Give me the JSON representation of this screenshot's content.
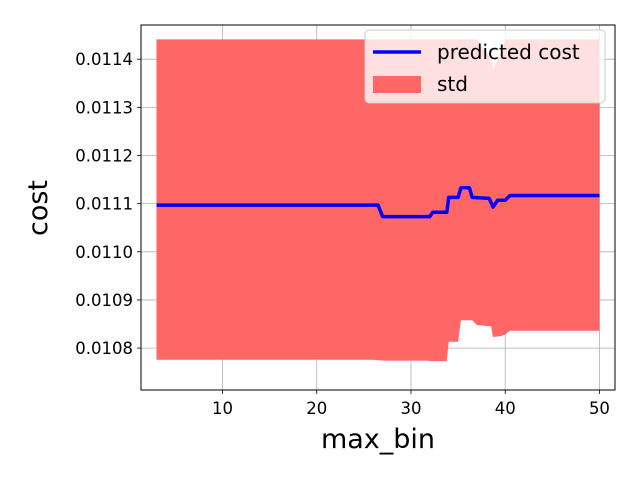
{
  "chart_data": {
    "type": "line",
    "xlabel": "max_bin",
    "ylabel": "cost",
    "xlim": [
      1.35,
      51.65
    ],
    "ylim": [
      0.010713,
      0.011471
    ],
    "grid": true,
    "legend_position": "upper-right",
    "xticks": [
      10,
      20,
      30,
      40,
      50
    ],
    "xtick_labels": [
      "10",
      "20",
      "30",
      "40",
      "50"
    ],
    "yticks": [
      0.0108,
      0.0109,
      0.011,
      0.0111,
      0.0112,
      0.0113,
      0.0114
    ],
    "ytick_labels": [
      "0.0108",
      "0.0109",
      "0.0110",
      "0.0111",
      "0.0112",
      "0.0113",
      "0.0114"
    ],
    "colors": {
      "line": "#0000ff",
      "band": "#ff6666"
    },
    "series": [
      {
        "name": "predicted cost",
        "kind": "line",
        "x": [
          3,
          26.5,
          27,
          32,
          32.3,
          33.8,
          34,
          35,
          35.3,
          36.2,
          36.5,
          38.3,
          38.7,
          39.2,
          40,
          40.5,
          50
        ],
        "y": [
          0.011097,
          0.011097,
          0.011073,
          0.011073,
          0.011082,
          0.011082,
          0.011113,
          0.011113,
          0.011133,
          0.011133,
          0.011113,
          0.011111,
          0.011093,
          0.011107,
          0.011107,
          0.011117,
          0.011117
        ]
      },
      {
        "name": "std",
        "kind": "band",
        "x": [
          3,
          26,
          27,
          31.8,
          32,
          33.8,
          34,
          35,
          35.3,
          36.5,
          37,
          38.5,
          38.7,
          39.5,
          40,
          40.5,
          50
        ],
        "lower": [
          0.010776,
          0.010776,
          0.010774,
          0.010774,
          0.010773,
          0.010773,
          0.010813,
          0.010813,
          0.010858,
          0.010858,
          0.010848,
          0.010845,
          0.010823,
          0.010825,
          0.010828,
          0.010836,
          0.010836
        ],
        "upper": [
          0.011441,
          0.011441,
          0.011441,
          0.011441,
          0.011441,
          0.011441,
          0.011441,
          0.011441,
          0.011441,
          0.011441,
          0.011441,
          0.0114,
          0.01138,
          0.01141,
          0.011441,
          0.011441,
          0.011441
        ]
      }
    ],
    "legend": [
      {
        "label": "predicted cost",
        "kind": "line"
      },
      {
        "label": "std",
        "kind": "band"
      }
    ]
  }
}
